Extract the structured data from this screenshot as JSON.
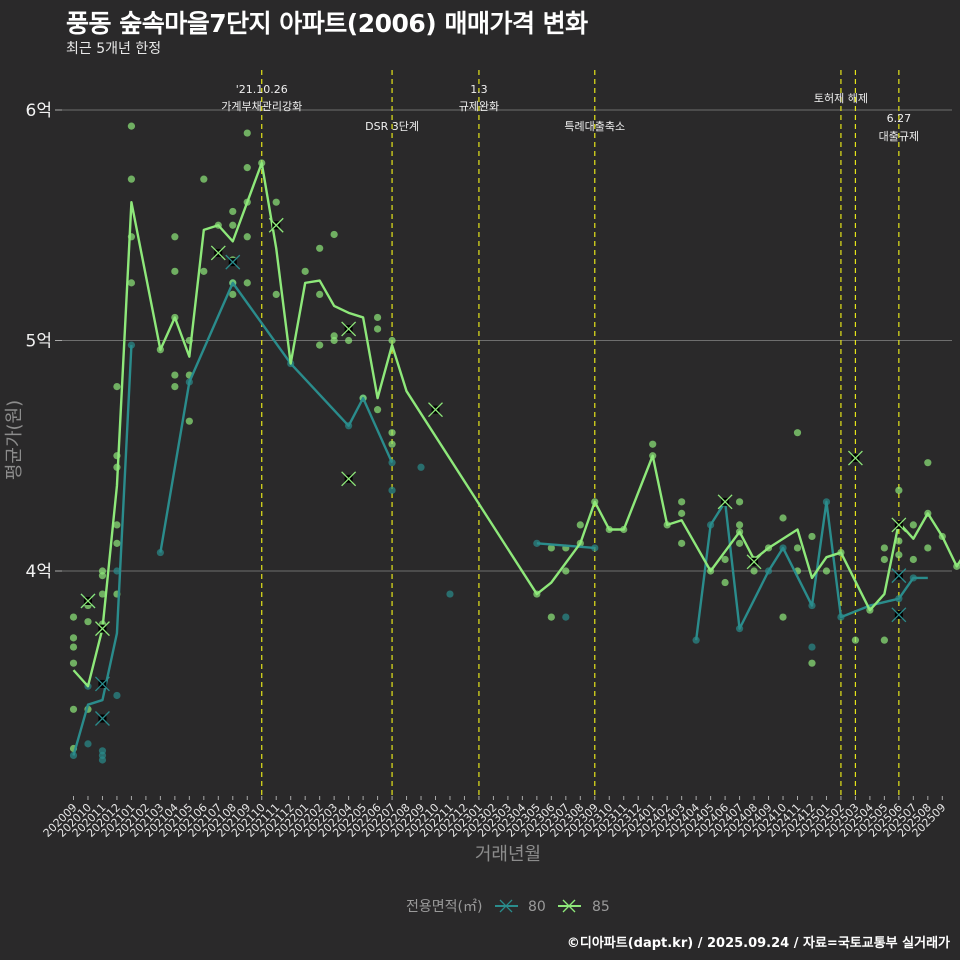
{
  "title": "풍동 숲속마을7단지 아파트(2006) 매매가격 변화",
  "subtitle": "최근 5개년 한정",
  "footer": "©디아파트(dapt.kr) / 2025.09.24 / 자료=국토교통부 실거래가",
  "colors": {
    "background": "#2a292a",
    "s80": "#2a8c8c",
    "s85": "#8ee87a",
    "event_line": "#e5e51a",
    "grid": "#6e6e6e"
  },
  "chart_data": {
    "type": "line",
    "title": "풍동 숲속마을7단지 아파트(2006) 매매가격 변화",
    "xlabel": "거래년월",
    "ylabel": "평균가(원)",
    "ylim": [
      3.1,
      6.2
    ],
    "yticks": [
      {
        "value": 4,
        "label": "4억"
      },
      {
        "value": 5,
        "label": "5억"
      },
      {
        "value": 6,
        "label": "6억"
      }
    ],
    "categories": [
      "202009",
      "202010",
      "202011",
      "202012",
      "202101",
      "202102",
      "202103",
      "202104",
      "202105",
      "202106",
      "202107",
      "202108",
      "202109",
      "202110",
      "202111",
      "202112",
      "202201",
      "202202",
      "202203",
      "202204",
      "202205",
      "202206",
      "202207",
      "202208",
      "202209",
      "202210",
      "202211",
      "202212",
      "202301",
      "202302",
      "202303",
      "202304",
      "202305",
      "202306",
      "202307",
      "202308",
      "202309",
      "202310",
      "202311",
      "202312",
      "202401",
      "202402",
      "202403",
      "202404",
      "202405",
      "202406",
      "202407",
      "202408",
      "202409",
      "202410",
      "202411",
      "202412",
      "202501",
      "202502",
      "202503",
      "202504",
      "202505",
      "202506",
      "202507",
      "202508",
      "202509"
    ],
    "legend": {
      "title": "전용면적(㎡)",
      "position": "bottom",
      "entries": [
        "80",
        "85"
      ]
    },
    "events": [
      {
        "month": "202110",
        "label_top": "'21.10.26",
        "label_bottom": "가계부채관리강화"
      },
      {
        "month": "202207",
        "label_top": "",
        "label_bottom": "DSR 3단계"
      },
      {
        "month": "202301",
        "label_top": "1.3",
        "label_bottom": "규제완화"
      },
      {
        "month": "202309",
        "label_top": "",
        "label_bottom": "특례대출축소"
      },
      {
        "month": "202502",
        "label_top": "토허제 해제",
        "label_bottom": ""
      },
      {
        "month": "202503",
        "label_top": "",
        "label_bottom": ""
      },
      {
        "month": "202506",
        "label_top": "6.27",
        "label_bottom": "대출규제"
      }
    ],
    "series": [
      {
        "name": "80",
        "line": [
          [
            0,
            3.2
          ],
          [
            1,
            3.42
          ],
          [
            2,
            3.44
          ],
          [
            3,
            3.73
          ],
          [
            4,
            4.98
          ],
          null,
          [
            6,
            4.08
          ],
          [
            8,
            4.82
          ],
          [
            11,
            5.25
          ],
          [
            15,
            4.9
          ],
          [
            19,
            4.63
          ],
          [
            20,
            4.75
          ],
          [
            22,
            4.47
          ],
          null,
          [
            32,
            4.12
          ],
          [
            36,
            4.1
          ],
          null,
          [
            43,
            3.7
          ],
          [
            44,
            4.2
          ],
          [
            45,
            4.3
          ],
          [
            46,
            3.75
          ],
          [
            48,
            4.0
          ],
          [
            49,
            4.1
          ],
          [
            51,
            3.85
          ],
          [
            52,
            4.3
          ],
          [
            53,
            3.8
          ],
          [
            55,
            3.85
          ],
          [
            57,
            3.88
          ],
          [
            58,
            3.97
          ],
          [
            59,
            3.97
          ]
        ],
        "points": [
          [
            0,
            3.2
          ],
          [
            1,
            3.5
          ],
          [
            1,
            3.25
          ],
          [
            2,
            3.22
          ],
          [
            2,
            3.2
          ],
          [
            2,
            3.18
          ],
          [
            3,
            3.46
          ],
          [
            3,
            4.0
          ],
          [
            4,
            4.98
          ],
          [
            6,
            4.08
          ],
          [
            8,
            4.82
          ],
          [
            11,
            5.25
          ],
          [
            15,
            4.9
          ],
          [
            19,
            4.63
          ],
          [
            20,
            4.75
          ],
          [
            22,
            4.35
          ],
          [
            22,
            4.47
          ],
          [
            24,
            4.45
          ],
          [
            26,
            3.9
          ],
          [
            32,
            4.12
          ],
          [
            34,
            3.8
          ],
          [
            36,
            4.1
          ],
          [
            43,
            3.7
          ],
          [
            44,
            4.2
          ],
          [
            45,
            4.3
          ],
          [
            46,
            3.75
          ],
          [
            48,
            4.0
          ],
          [
            49,
            4.1
          ],
          [
            51,
            3.67
          ],
          [
            51,
            3.85
          ],
          [
            52,
            4.3
          ],
          [
            53,
            3.8
          ],
          [
            57,
            3.88
          ],
          [
            58,
            3.97
          ]
        ],
        "crosses": [
          [
            1,
            3.87
          ],
          [
            2,
            3.51
          ],
          [
            2,
            3.36
          ],
          [
            11,
            5.34
          ],
          [
            57,
            3.98
          ],
          [
            57,
            3.81
          ]
        ]
      },
      {
        "name": "85",
        "line": [
          [
            0,
            3.57
          ],
          [
            1,
            3.5
          ],
          [
            2,
            3.75
          ],
          [
            3,
            4.37
          ],
          [
            4,
            5.6
          ],
          [
            6,
            4.96
          ],
          [
            7,
            5.1
          ],
          [
            8,
            4.93
          ],
          [
            9,
            5.48
          ],
          [
            10,
            5.5
          ],
          [
            11,
            5.43
          ],
          [
            13,
            5.77
          ],
          [
            14,
            5.4
          ],
          [
            15,
            4.9
          ],
          [
            16,
            5.25
          ],
          [
            17,
            5.26
          ],
          [
            18,
            5.15
          ],
          [
            19,
            5.12
          ],
          [
            20,
            5.1
          ],
          [
            21,
            4.75
          ],
          [
            22,
            4.98
          ],
          [
            23,
            4.78
          ],
          [
            32,
            3.9
          ],
          [
            33,
            3.95
          ],
          [
            35,
            4.12
          ],
          [
            36,
            4.3
          ],
          [
            37,
            4.18
          ],
          [
            38,
            4.18
          ],
          [
            40,
            4.5
          ],
          [
            41,
            4.2
          ],
          [
            42,
            4.22
          ],
          [
            44,
            4.0
          ],
          [
            46,
            4.17
          ],
          [
            47,
            4.05
          ],
          [
            48,
            4.1
          ],
          [
            50,
            4.18
          ],
          [
            51,
            3.97
          ],
          [
            52,
            4.06
          ],
          [
            53,
            4.08
          ],
          [
            55,
            3.83
          ],
          [
            56,
            3.9
          ],
          [
            57,
            4.21
          ],
          [
            58,
            4.14
          ],
          [
            59,
            4.25
          ],
          [
            60,
            4.15
          ],
          [
            61,
            4.02
          ],
          [
            62,
            4.12
          ]
        ],
        "points": [
          [
            0,
            3.23
          ],
          [
            0,
            3.4
          ],
          [
            0,
            3.6
          ],
          [
            0,
            3.67
          ],
          [
            0,
            3.71
          ],
          [
            0,
            3.8
          ],
          [
            1,
            3.78
          ],
          [
            1,
            3.4
          ],
          [
            1,
            3.85
          ],
          [
            2,
            3.9
          ],
          [
            2,
            3.98
          ],
          [
            2,
            4.0
          ],
          [
            2,
            3.77
          ],
          [
            3,
            3.9
          ],
          [
            3,
            4.12
          ],
          [
            3,
            4.2
          ],
          [
            3,
            4.45
          ],
          [
            3,
            4.5
          ],
          [
            3,
            4.8
          ],
          [
            4,
            5.25
          ],
          [
            4,
            5.45
          ],
          [
            4,
            5.7
          ],
          [
            4,
            5.93
          ],
          [
            6,
            4.96
          ],
          [
            7,
            4.8
          ],
          [
            7,
            4.85
          ],
          [
            7,
            5.1
          ],
          [
            7,
            5.3
          ],
          [
            7,
            5.45
          ],
          [
            8,
            4.65
          ],
          [
            8,
            4.85
          ],
          [
            8,
            5.0
          ],
          [
            9,
            5.3
          ],
          [
            9,
            5.7
          ],
          [
            10,
            5.5
          ],
          [
            10,
            5.38
          ],
          [
            11,
            5.2
          ],
          [
            11,
            5.25
          ],
          [
            11,
            5.35
          ],
          [
            11,
            5.5
          ],
          [
            11,
            5.56
          ],
          [
            12,
            5.25
          ],
          [
            12,
            5.45
          ],
          [
            12,
            5.6
          ],
          [
            12,
            5.75
          ],
          [
            12,
            5.9
          ],
          [
            13,
            5.77
          ],
          [
            14,
            5.2
          ],
          [
            14,
            5.6
          ],
          [
            16,
            5.3
          ],
          [
            17,
            5.2
          ],
          [
            17,
            4.98
          ],
          [
            17,
            5.4
          ],
          [
            18,
            5.46
          ],
          [
            18,
            5.0
          ],
          [
            18,
            5.02
          ],
          [
            19,
            5.0
          ],
          [
            20,
            4.75
          ],
          [
            21,
            4.7
          ],
          [
            21,
            5.05
          ],
          [
            21,
            5.1
          ],
          [
            22,
            4.55
          ],
          [
            22,
            4.6
          ],
          [
            22,
            5.0
          ],
          [
            32,
            3.9
          ],
          [
            33,
            3.8
          ],
          [
            33,
            4.1
          ],
          [
            34,
            4.0
          ],
          [
            34,
            4.1
          ],
          [
            35,
            4.12
          ],
          [
            35,
            4.2
          ],
          [
            36,
            4.3
          ],
          [
            37,
            4.18
          ],
          [
            38,
            4.18
          ],
          [
            40,
            4.5
          ],
          [
            40,
            4.55
          ],
          [
            41,
            4.2
          ],
          [
            42,
            4.25
          ],
          [
            42,
            4.3
          ],
          [
            42,
            4.12
          ],
          [
            44,
            4.0
          ],
          [
            45,
            3.95
          ],
          [
            45,
            4.05
          ],
          [
            46,
            4.3
          ],
          [
            46,
            4.2
          ],
          [
            46,
            4.17
          ],
          [
            46,
            4.12
          ],
          [
            47,
            4.05
          ],
          [
            47,
            4.0
          ],
          [
            48,
            4.1
          ],
          [
            49,
            3.8
          ],
          [
            49,
            4.23
          ],
          [
            50,
            4.6
          ],
          [
            50,
            4.0
          ],
          [
            50,
            4.1
          ],
          [
            51,
            3.6
          ],
          [
            51,
            4.15
          ],
          [
            52,
            4.0
          ],
          [
            53,
            4.08
          ],
          [
            54,
            3.7
          ],
          [
            55,
            3.83
          ],
          [
            56,
            4.1
          ],
          [
            56,
            4.05
          ],
          [
            56,
            3.7
          ],
          [
            57,
            4.35
          ],
          [
            57,
            4.07
          ],
          [
            57,
            4.13
          ],
          [
            58,
            4.2
          ],
          [
            58,
            4.05
          ],
          [
            59,
            4.47
          ],
          [
            59,
            4.25
          ],
          [
            59,
            4.1
          ],
          [
            60,
            4.15
          ],
          [
            61,
            4.02
          ],
          [
            62,
            4.4
          ],
          [
            62,
            4.0
          ],
          [
            62,
            3.9
          ]
        ],
        "crosses": [
          [
            1,
            3.87
          ],
          [
            2,
            3.75
          ],
          [
            10,
            5.38
          ],
          [
            14,
            5.5
          ],
          [
            19,
            5.05
          ],
          [
            19,
            4.4
          ],
          [
            25,
            4.7
          ],
          [
            45,
            4.3
          ],
          [
            47,
            4.04
          ],
          [
            54,
            4.49
          ],
          [
            57,
            4.2
          ]
        ]
      }
    ]
  }
}
